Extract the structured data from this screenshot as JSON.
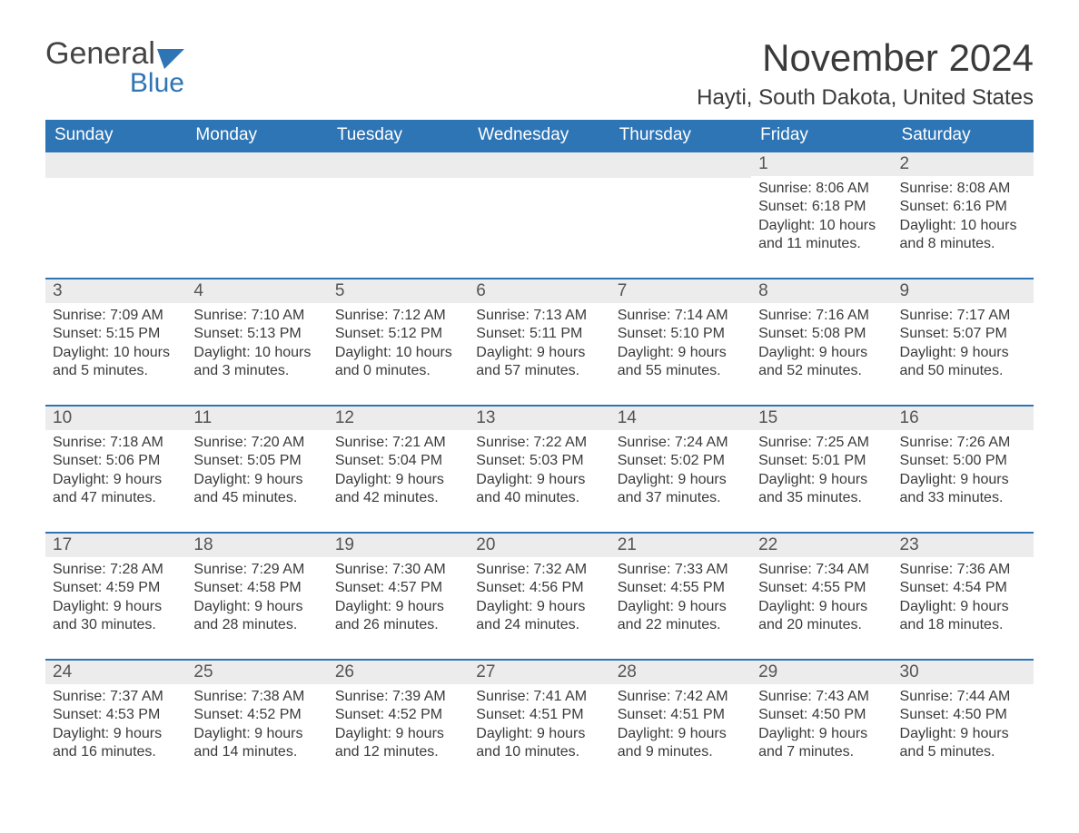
{
  "logo": {
    "text_top": "General",
    "text_bottom": "Blue",
    "flag_color": "#2e75b6"
  },
  "title": "November 2024",
  "location": "Hayti, South Dakota, United States",
  "colors": {
    "header_bg": "#2e75b6",
    "header_text": "#ffffff",
    "daynum_bg": "#ececec",
    "row_border": "#2e75b6",
    "body_text": "#3a3a3a"
  },
  "day_labels": [
    "Sunday",
    "Monday",
    "Tuesday",
    "Wednesday",
    "Thursday",
    "Friday",
    "Saturday"
  ],
  "weeks": [
    [
      {
        "blank": true
      },
      {
        "blank": true
      },
      {
        "blank": true
      },
      {
        "blank": true
      },
      {
        "blank": true
      },
      {
        "num": "1",
        "sunrise": "8:06 AM",
        "sunset": "6:18 PM",
        "daylight": "10 hours and 11 minutes."
      },
      {
        "num": "2",
        "sunrise": "8:08 AM",
        "sunset": "6:16 PM",
        "daylight": "10 hours and 8 minutes."
      }
    ],
    [
      {
        "num": "3",
        "sunrise": "7:09 AM",
        "sunset": "5:15 PM",
        "daylight": "10 hours and 5 minutes."
      },
      {
        "num": "4",
        "sunrise": "7:10 AM",
        "sunset": "5:13 PM",
        "daylight": "10 hours and 3 minutes."
      },
      {
        "num": "5",
        "sunrise": "7:12 AM",
        "sunset": "5:12 PM",
        "daylight": "10 hours and 0 minutes."
      },
      {
        "num": "6",
        "sunrise": "7:13 AM",
        "sunset": "5:11 PM",
        "daylight": "9 hours and 57 minutes."
      },
      {
        "num": "7",
        "sunrise": "7:14 AM",
        "sunset": "5:10 PM",
        "daylight": "9 hours and 55 minutes."
      },
      {
        "num": "8",
        "sunrise": "7:16 AM",
        "sunset": "5:08 PM",
        "daylight": "9 hours and 52 minutes."
      },
      {
        "num": "9",
        "sunrise": "7:17 AM",
        "sunset": "5:07 PM",
        "daylight": "9 hours and 50 minutes."
      }
    ],
    [
      {
        "num": "10",
        "sunrise": "7:18 AM",
        "sunset": "5:06 PM",
        "daylight": "9 hours and 47 minutes."
      },
      {
        "num": "11",
        "sunrise": "7:20 AM",
        "sunset": "5:05 PM",
        "daylight": "9 hours and 45 minutes."
      },
      {
        "num": "12",
        "sunrise": "7:21 AM",
        "sunset": "5:04 PM",
        "daylight": "9 hours and 42 minutes."
      },
      {
        "num": "13",
        "sunrise": "7:22 AM",
        "sunset": "5:03 PM",
        "daylight": "9 hours and 40 minutes."
      },
      {
        "num": "14",
        "sunrise": "7:24 AM",
        "sunset": "5:02 PM",
        "daylight": "9 hours and 37 minutes."
      },
      {
        "num": "15",
        "sunrise": "7:25 AM",
        "sunset": "5:01 PM",
        "daylight": "9 hours and 35 minutes."
      },
      {
        "num": "16",
        "sunrise": "7:26 AM",
        "sunset": "5:00 PM",
        "daylight": "9 hours and 33 minutes."
      }
    ],
    [
      {
        "num": "17",
        "sunrise": "7:28 AM",
        "sunset": "4:59 PM",
        "daylight": "9 hours and 30 minutes."
      },
      {
        "num": "18",
        "sunrise": "7:29 AM",
        "sunset": "4:58 PM",
        "daylight": "9 hours and 28 minutes."
      },
      {
        "num": "19",
        "sunrise": "7:30 AM",
        "sunset": "4:57 PM",
        "daylight": "9 hours and 26 minutes."
      },
      {
        "num": "20",
        "sunrise": "7:32 AM",
        "sunset": "4:56 PM",
        "daylight": "9 hours and 24 minutes."
      },
      {
        "num": "21",
        "sunrise": "7:33 AM",
        "sunset": "4:55 PM",
        "daylight": "9 hours and 22 minutes."
      },
      {
        "num": "22",
        "sunrise": "7:34 AM",
        "sunset": "4:55 PM",
        "daylight": "9 hours and 20 minutes."
      },
      {
        "num": "23",
        "sunrise": "7:36 AM",
        "sunset": "4:54 PM",
        "daylight": "9 hours and 18 minutes."
      }
    ],
    [
      {
        "num": "24",
        "sunrise": "7:37 AM",
        "sunset": "4:53 PM",
        "daylight": "9 hours and 16 minutes."
      },
      {
        "num": "25",
        "sunrise": "7:38 AM",
        "sunset": "4:52 PM",
        "daylight": "9 hours and 14 minutes."
      },
      {
        "num": "26",
        "sunrise": "7:39 AM",
        "sunset": "4:52 PM",
        "daylight": "9 hours and 12 minutes."
      },
      {
        "num": "27",
        "sunrise": "7:41 AM",
        "sunset": "4:51 PM",
        "daylight": "9 hours and 10 minutes."
      },
      {
        "num": "28",
        "sunrise": "7:42 AM",
        "sunset": "4:51 PM",
        "daylight": "9 hours and 9 minutes."
      },
      {
        "num": "29",
        "sunrise": "7:43 AM",
        "sunset": "4:50 PM",
        "daylight": "9 hours and 7 minutes."
      },
      {
        "num": "30",
        "sunrise": "7:44 AM",
        "sunset": "4:50 PM",
        "daylight": "9 hours and 5 minutes."
      }
    ]
  ],
  "labels": {
    "sunrise": "Sunrise: ",
    "sunset": "Sunset: ",
    "daylight": "Daylight: "
  }
}
